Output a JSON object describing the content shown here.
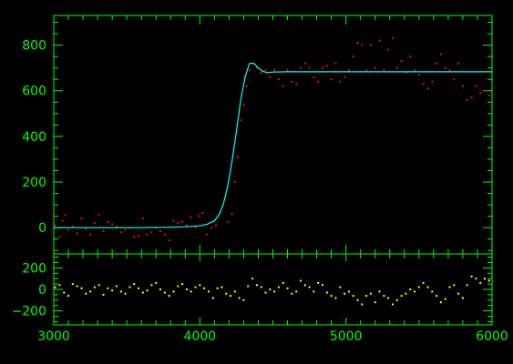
{
  "colors": {
    "background": "#000000",
    "axes": "#00ff00",
    "fit": "#00ffff",
    "data": "#ff0000",
    "residuals": "#ffff00"
  },
  "chart_data": [
    {
      "type": "scatter",
      "panel": "main",
      "title": "",
      "xlabel": "",
      "ylabel": "",
      "xlim": [
        3000,
        6000
      ],
      "ylim": [
        -115,
        930
      ],
      "x_ticks": [
        3000,
        4000,
        5000,
        6000
      ],
      "y_ticks": [
        0,
        200,
        400,
        600,
        800
      ],
      "y_tick_labels": [
        "0",
        "200",
        "400",
        "600",
        "800"
      ],
      "grid": false,
      "series": [
        {
          "style": "points",
          "color": "#ff0000",
          "x": [
            3010,
            3040,
            3060,
            3080,
            3100,
            3130,
            3160,
            3190,
            3220,
            3250,
            3280,
            3310,
            3340,
            3370,
            3400,
            3430,
            3460,
            3490,
            3520,
            3550,
            3580,
            3610,
            3640,
            3670,
            3700,
            3730,
            3760,
            3790,
            3820,
            3850,
            3880,
            3910,
            3940,
            3970,
            3995,
            4020,
            4050,
            4080,
            4110,
            4140,
            4170,
            4195,
            4220,
            4240,
            4260,
            4280,
            4300,
            4320,
            4340,
            4360,
            4390,
            4420,
            4450,
            4480,
            4510,
            4540,
            4570,
            4600,
            4630,
            4660,
            4690,
            4720,
            4750,
            4780,
            4810,
            4840,
            4870,
            4900,
            4930,
            4960,
            4990,
            5020,
            5050,
            5080,
            5110,
            5140,
            5170,
            5200,
            5230,
            5260,
            5290,
            5320,
            5350,
            5380,
            5410,
            5440,
            5470,
            5500,
            5530,
            5560,
            5590,
            5620,
            5650,
            5680,
            5710,
            5740,
            5770,
            5800,
            5830,
            5860,
            5890,
            5920,
            5950,
            5980
          ],
          "y": [
            10,
            -40,
            30,
            55,
            -10,
            5,
            -25,
            40,
            -5,
            -30,
            20,
            55,
            -15,
            25,
            15,
            5,
            -20,
            -10,
            0,
            -40,
            -35,
            40,
            -30,
            -20,
            0,
            -15,
            -30,
            -55,
            30,
            20,
            25,
            10,
            45,
            0,
            50,
            65,
            -30,
            0,
            10,
            65,
            125,
            25,
            60,
            200,
            310,
            470,
            540,
            620,
            690,
            720,
            700,
            680,
            690,
            660,
            690,
            650,
            620,
            690,
            640,
            630,
            700,
            720,
            700,
            660,
            640,
            700,
            710,
            650,
            720,
            640,
            660,
            690,
            750,
            810,
            800,
            690,
            800,
            700,
            820,
            690,
            780,
            830,
            700,
            730,
            680,
            750,
            690,
            670,
            630,
            610,
            640,
            720,
            760,
            700,
            690,
            650,
            720,
            620,
            560,
            570,
            620,
            590,
            600,
            580
          ]
        },
        {
          "style": "line",
          "color": "#00ffff",
          "x": [
            3000,
            3200,
            3400,
            3600,
            3800,
            3900,
            4000,
            4050,
            4100,
            4130,
            4160,
            4190,
            4220,
            4250,
            4280,
            4310,
            4340,
            4370,
            4400,
            4430,
            4460,
            4500,
            4600,
            4800,
            5000,
            5200,
            5400,
            5600,
            5800,
            6000
          ],
          "y": [
            0,
            0,
            0,
            0,
            2,
            4,
            8,
            15,
            30,
            55,
            100,
            180,
            290,
            420,
            560,
            660,
            720,
            720,
            700,
            685,
            680,
            682,
            683,
            683,
            683,
            683,
            683,
            683,
            683,
            683
          ]
        }
      ]
    },
    {
      "type": "scatter",
      "panel": "residuals",
      "title": "",
      "xlabel": "",
      "ylabel": "",
      "xlim": [
        3000,
        6000
      ],
      "ylim": [
        -330,
        330
      ],
      "x_ticks": [
        3000,
        4000,
        5000,
        6000
      ],
      "x_tick_labels": [
        "3000",
        "4000",
        "5000",
        "6000"
      ],
      "y_ticks": [
        -200,
        0,
        200
      ],
      "y_tick_labels": [
        "−200",
        "0",
        "200"
      ],
      "grid": false,
      "series": [
        {
          "style": "points",
          "color": "#ffff00",
          "x": [
            3010,
            3040,
            3070,
            3100,
            3130,
            3160,
            3190,
            3220,
            3250,
            3280,
            3310,
            3340,
            3370,
            3400,
            3430,
            3460,
            3490,
            3520,
            3550,
            3580,
            3610,
            3640,
            3670,
            3700,
            3730,
            3760,
            3790,
            3820,
            3850,
            3880,
            3910,
            3940,
            3970,
            4000,
            4030,
            4060,
            4090,
            4120,
            4150,
            4180,
            4210,
            4240,
            4270,
            4300,
            4330,
            4360,
            4390,
            4420,
            4450,
            4480,
            4510,
            4540,
            4570,
            4600,
            4630,
            4660,
            4690,
            4720,
            4750,
            4780,
            4810,
            4840,
            4870,
            4900,
            4930,
            4960,
            4990,
            5020,
            5050,
            5080,
            5110,
            5140,
            5170,
            5200,
            5230,
            5260,
            5290,
            5320,
            5350,
            5380,
            5410,
            5440,
            5470,
            5500,
            5530,
            5560,
            5590,
            5620,
            5650,
            5680,
            5710,
            5740,
            5770,
            5800,
            5830,
            5860,
            5890,
            5920,
            5950,
            5980
          ],
          "y": [
            20,
            40,
            -30,
            -60,
            50,
            30,
            10,
            -40,
            -20,
            20,
            40,
            -50,
            10,
            -10,
            30,
            -20,
            -40,
            20,
            50,
            10,
            -30,
            -10,
            40,
            60,
            0,
            -30,
            -60,
            -20,
            30,
            50,
            0,
            -20,
            20,
            40,
            10,
            -20,
            -80,
            10,
            20,
            -40,
            -60,
            -20,
            -80,
            -100,
            30,
            100,
            40,
            20,
            -30,
            0,
            -20,
            20,
            60,
            10,
            -40,
            -20,
            80,
            40,
            20,
            -20,
            60,
            40,
            -30,
            -60,
            -80,
            20,
            -40,
            -20,
            -60,
            -100,
            -140,
            -60,
            -40,
            -120,
            -20,
            -60,
            -80,
            -140,
            -100,
            -60,
            -40,
            0,
            -20,
            20,
            60,
            20,
            -20,
            -60,
            -120,
            -90,
            20,
            40,
            -40,
            -80,
            40,
            120,
            100,
            60,
            100,
            80
          ]
        }
      ]
    }
  ]
}
